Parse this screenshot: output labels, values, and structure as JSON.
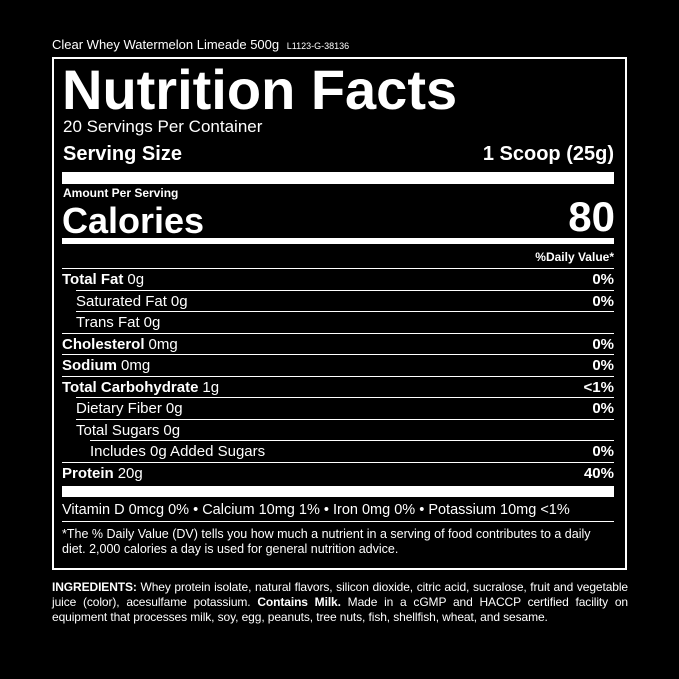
{
  "header": {
    "product": "Clear Whey Watermelon Limeade 500g",
    "lot": "L1123-G-38136"
  },
  "label": {
    "title": "Nutrition Facts",
    "servings": "20 Servings Per Container",
    "serving_size": {
      "label": "Serving Size",
      "value": "1 Scoop (25g)"
    },
    "amount_per_serving": "Amount Per Serving",
    "calories": {
      "label": "Calories",
      "value": "80"
    },
    "daily_value_header": "%Daily Value*",
    "rows": [
      {
        "name": "Total Fat",
        "amount": "0g",
        "dv": "0%",
        "bold": true,
        "indent": 0
      },
      {
        "name": "Saturated Fat",
        "amount": "0g",
        "dv": "0%",
        "bold": false,
        "indent": 1
      },
      {
        "name": "Trans Fat",
        "amount": "0g",
        "bold": false,
        "indent": 1
      },
      {
        "name": "Cholesterol",
        "amount": "0mg",
        "dv": "0%",
        "bold": true,
        "indent": 0
      },
      {
        "name": "Sodium",
        "amount": "0mg",
        "dv": "0%",
        "bold": true,
        "indent": 0
      },
      {
        "name": "Total Carbohydrate",
        "amount": "1g",
        "dv": "<1%",
        "bold": true,
        "indent": 0
      },
      {
        "name": "Dietary Fiber",
        "amount": "0g",
        "dv": "0%",
        "bold": false,
        "indent": 1
      },
      {
        "name": "Total Sugars",
        "amount": "0g",
        "bold": false,
        "indent": 1
      },
      {
        "name": "Includes 0g Added Sugars",
        "dv": "0%",
        "bold": false,
        "indent": 2
      },
      {
        "name": "Protein",
        "amount": "20g",
        "dv": "40%",
        "bold": true,
        "indent": 0
      }
    ],
    "vitamins": "Vitamin D 0mcg 0% • Calcium 10mg 1% • Iron 0mg 0% • Potassium 10mg <1%",
    "footnote": "*The % Daily Value (DV) tells you how much a nutrient in a serving of food contributes to a daily diet. 2,000 calories a day is used for general nutrition advice."
  },
  "ingredients": {
    "heading": "INGREDIENTS:",
    "text": "Whey protein isolate, natural flavors, silicon dioxide, citric acid, sucralose, fruit and vegetable juice (color), acesulfame potassium.",
    "allergen": "Contains Milk.",
    "facility": "Made in a cGMP and HACCP certified facility on equipment that processes milk, soy, egg, peanuts, tree nuts, fish, shellfish, wheat, and sesame."
  }
}
